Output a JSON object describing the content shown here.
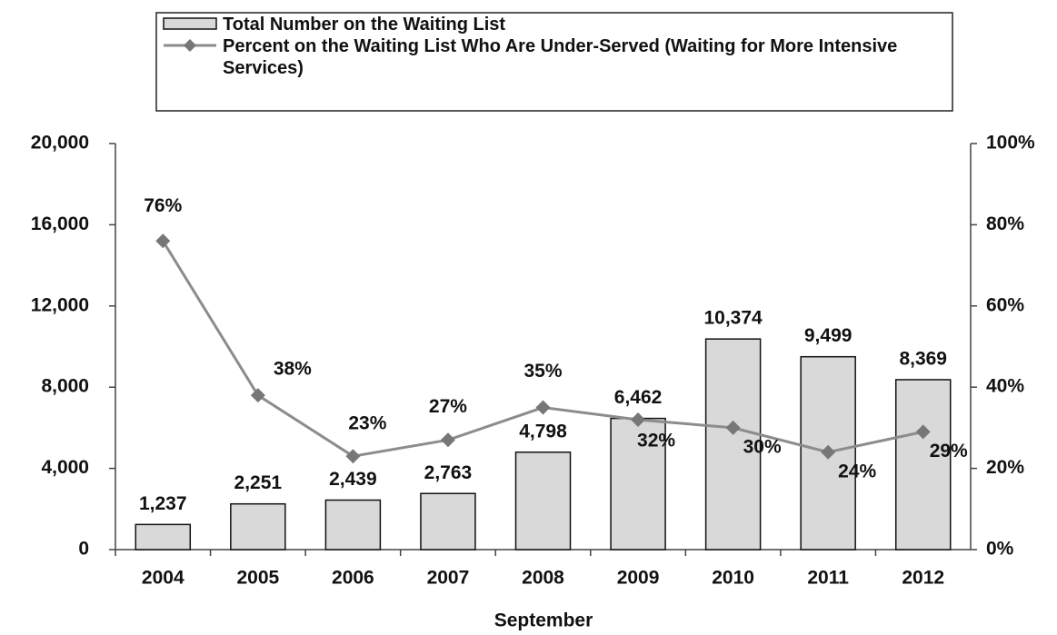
{
  "chart_data": {
    "type": "bar",
    "x_label": "September",
    "categories": [
      "2004",
      "2005",
      "2006",
      "2007",
      "2008",
      "2009",
      "2010",
      "2011",
      "2012"
    ],
    "series": [
      {
        "name": "Total Number on the Waiting List",
        "type": "bar",
        "color": "#d9d9d9",
        "values": [
          1237,
          2251,
          2439,
          2763,
          4798,
          6462,
          10374,
          9499,
          8369
        ],
        "value_labels": [
          "1,237",
          "2,251",
          "2,439",
          "2,763",
          "4,798",
          "6,462",
          "10,374",
          "9,499",
          "8,369"
        ]
      },
      {
        "name": "Percent on the Waiting List Who Are Under-Served (Waiting for More Intensive Services)",
        "type": "line",
        "axis": "y2",
        "color": "#8c8c8c",
        "values": [
          76,
          38,
          23,
          27,
          35,
          32,
          30,
          24,
          29
        ],
        "value_labels": [
          "76%",
          "38%",
          "23%",
          "27%",
          "35%",
          "32%",
          "30%",
          "24%",
          "29%"
        ]
      }
    ],
    "ylim": [
      0,
      20000
    ],
    "yticks": [
      0,
      {
        "value": 4000,
        "label": "4,000"
      },
      {
        "value": 8000,
        "label": "8,000"
      },
      {
        "value": 12000,
        "label": "12,000"
      },
      {
        "value": 16000,
        "label": "16,000"
      },
      {
        "value": 20000,
        "label": "20,000"
      }
    ],
    "y2lim": [
      0,
      100
    ],
    "y2ticks": [
      {
        "value": 0,
        "label": "0%"
      },
      {
        "value": 20,
        "label": "20%"
      },
      {
        "value": 40,
        "label": "40%"
      },
      {
        "value": 60,
        "label": "60%"
      },
      {
        "value": 80,
        "label": "80%"
      },
      {
        "value": 100,
        "label": "100%"
      }
    ],
    "legend": "top"
  }
}
